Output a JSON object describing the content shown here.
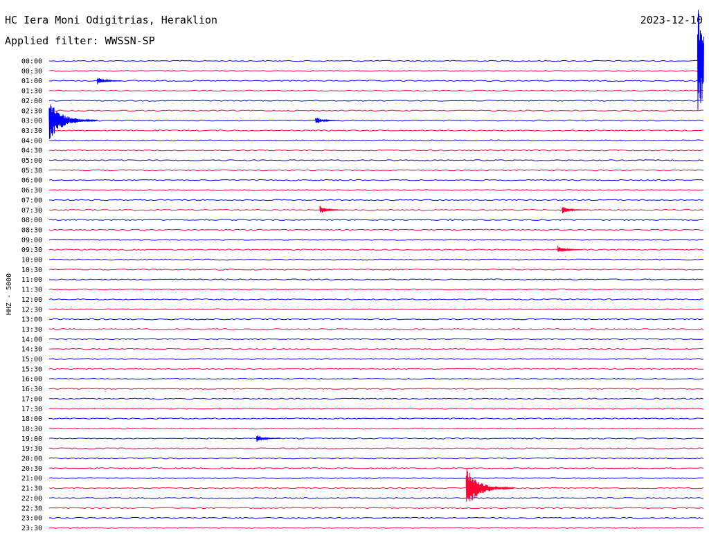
{
  "header": {
    "station": "HC Iera Moni Odigitrias, Heraklion",
    "filter": "Applied filter: WWSSN-SP",
    "date": "2023-12-10"
  },
  "chart_data": {
    "type": "line",
    "title": "HC Iera Moni Odigitrias, Heraklion",
    "subtitle": "Applied filter: WWSSN-SP",
    "date": "2023-12-10",
    "ylabel": "HHZ - 5000",
    "colors": [
      "#0000ff",
      "#ff0033"
    ],
    "row_labels": [
      "00:00",
      "00:30",
      "01:00",
      "01:30",
      "02:00",
      "02:30",
      "03:00",
      "03:30",
      "04:00",
      "04:30",
      "05:00",
      "05:30",
      "06:00",
      "06:30",
      "07:00",
      "07:30",
      "08:00",
      "08:30",
      "09:00",
      "09:30",
      "10:00",
      "10:30",
      "11:00",
      "11:30",
      "12:00",
      "12:30",
      "13:00",
      "13:30",
      "14:00",
      "14:30",
      "15:00",
      "15:30",
      "16:00",
      "16:30",
      "17:00",
      "17:30",
      "18:00",
      "18:30",
      "19:00",
      "19:30",
      "20:00",
      "20:30",
      "21:00",
      "21:30",
      "22:00",
      "22:30",
      "23:00",
      "23:30"
    ],
    "events": [
      {
        "row": "00:00",
        "x_min": 29.7,
        "amplitude": "very large"
      },
      {
        "row": "01:00",
        "x_min": 2.2,
        "amplitude": "small"
      },
      {
        "row": "03:00",
        "x_min": 0.0,
        "amplitude": "large"
      },
      {
        "row": "03:00",
        "x_min": 12.2,
        "amplitude": "small"
      },
      {
        "row": "07:30",
        "x_min": 12.4,
        "amplitude": "small"
      },
      {
        "row": "07:30",
        "x_min": 23.5,
        "amplitude": "small"
      },
      {
        "row": "09:30",
        "x_min": 23.3,
        "amplitude": "small"
      },
      {
        "row": "19:00",
        "x_min": 9.5,
        "amplitude": "small"
      },
      {
        "row": "21:30",
        "x_min": 19.1,
        "amplitude": "large"
      }
    ]
  }
}
